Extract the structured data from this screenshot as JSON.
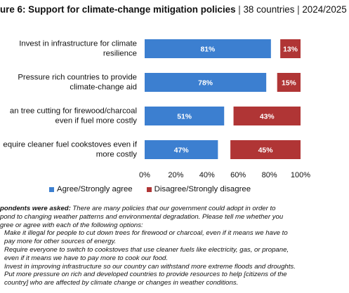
{
  "title": {
    "main": "ure 6: Support for climate-change mitigation policies",
    "sep": " | ",
    "countries": "38 countries",
    "years": "2024/2025"
  },
  "chart_data": {
    "type": "bar",
    "orientation": "horizontal-stacked",
    "categories": [
      [
        "Invest in infrastructure for climate",
        "resilience"
      ],
      [
        "Pressure rich countries to provide",
        "climate-change aid"
      ],
      [
        "an tree cutting for firewood/charcoal",
        "even if fuel more costly"
      ],
      [
        "equire cleaner fuel cookstoves even if",
        "more costly"
      ]
    ],
    "series": [
      {
        "name": "Agree/Strongly agree",
        "color": "#3c7fd0",
        "values": [
          81,
          78,
          51,
          47
        ],
        "labels": [
          "81%",
          "78%",
          "51%",
          "47%"
        ]
      },
      {
        "name": "Disagree/Strongly disagree",
        "color": "#b03535",
        "values": [
          13,
          15,
          43,
          45
        ],
        "labels": [
          "13%",
          "15%",
          "43%",
          "45%"
        ]
      }
    ],
    "xlim": [
      0,
      100
    ],
    "xticks": [
      "0%",
      "20%",
      "40%",
      "60%",
      "80%",
      "100%"
    ],
    "grid": false,
    "legend_position": "bottom"
  },
  "notes": {
    "label": "pondents were asked:",
    "intro_lines": [
      " There are many policies that our government could adopt in order to",
      "pond to changing weather patterns and environmental degradation. Please tell me whether you",
      "gree or agree with each of the following options:"
    ],
    "option_lines": [
      "Make it illegal for people to cut down trees for firewood or charcoal, even if it means we have to",
      "pay more for other sources of energy.",
      "Require everyone to switch to cookstoves that use cleaner fuels like electricity, gas, or propane,",
      "even if it means we have to pay more to cook our food.",
      "Invest in improving infrastructure so our country can withstand more extreme floods and droughts.",
      "Put more pressure on rich and developed countries to provide resources to help [citizens of the",
      "country] who are affected by climate change or changes in weather conditions."
    ]
  }
}
